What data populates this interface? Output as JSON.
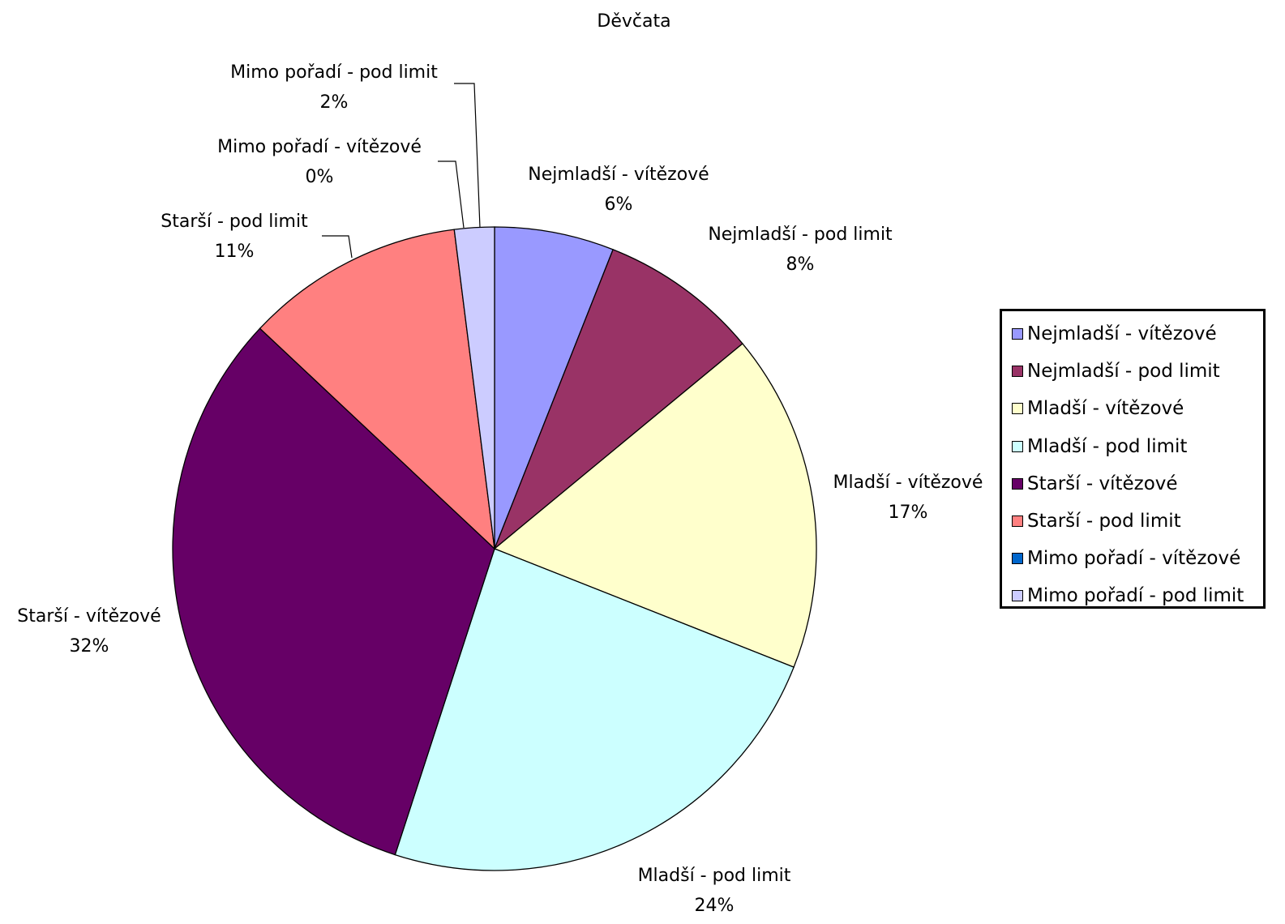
{
  "chart_data": {
    "type": "pie",
    "title": "Děvčata",
    "slices": [
      {
        "label": "Nejmladší - vítězové",
        "value": 6,
        "display": "6%",
        "color": "#9999FF"
      },
      {
        "label": "Nejmladší - pod limit",
        "value": 8,
        "display": "8%",
        "color": "#993366"
      },
      {
        "label": "Mladší - vítězové",
        "value": 17,
        "display": "17%",
        "color": "#FFFFCC"
      },
      {
        "label": "Mladší - pod limit",
        "value": 24,
        "display": "24%",
        "color": "#CCFFFF"
      },
      {
        "label": "Starší - vítězové",
        "value": 32,
        "display": "32%",
        "color": "#660066"
      },
      {
        "label": "Starší - pod limit",
        "value": 11,
        "display": "11%",
        "color": "#FF8080"
      },
      {
        "label": "Mimo pořadí - vítězové",
        "value": 0,
        "display": "0%",
        "color": "#0066CC"
      },
      {
        "label": "Mimo pořadí - pod limit",
        "value": 2,
        "display": "2%",
        "color": "#CCCCFF"
      }
    ],
    "legend_position": "right"
  }
}
